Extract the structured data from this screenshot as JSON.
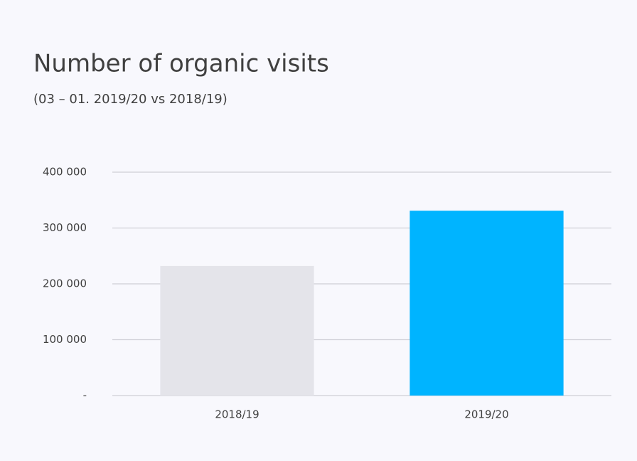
{
  "chart_data": {
    "type": "bar",
    "title": "Number of organic visits",
    "subtitle": "(03 – 01. 2019/20 vs 2018/19)",
    "categories": [
      "2018/19",
      "2019/20"
    ],
    "values": [
      232000,
      331000
    ],
    "colors": [
      "#e4e4ea",
      "#00b4ff"
    ],
    "ylim": [
      0,
      400000
    ],
    "yticks": [
      {
        "value": 0,
        "label": "-"
      },
      {
        "value": 100000,
        "label": "100 000"
      },
      {
        "value": 200000,
        "label": "200 000"
      },
      {
        "value": 300000,
        "label": "300 000"
      },
      {
        "value": 400000,
        "label": "400 000"
      }
    ],
    "grid": true
  }
}
